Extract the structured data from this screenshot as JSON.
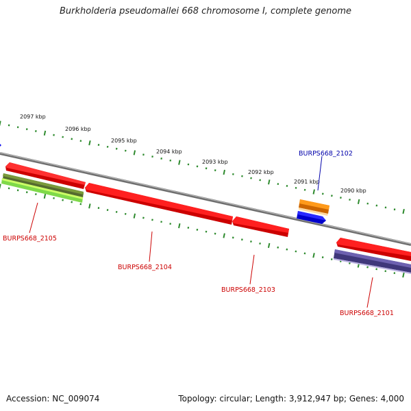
{
  "title": "Burkholderia pseudomallei 668 chromosome I, complete genome",
  "footer": {
    "accession": "Accession: NC_009074",
    "summary": "Topology: circular; Length: 3,912,947 bp; Genes: 4,000"
  },
  "ruler_labels": [
    "2097 kbp",
    "2096 kbp",
    "2095 kbp",
    "2094 kbp",
    "2093 kbp",
    "2092 kbp",
    "2091 kbp",
    "2090 kbp"
  ],
  "genes": [
    {
      "label": "BURPS668_2105",
      "color": "#cc0000"
    },
    {
      "label": "BURPS668_2104",
      "color": "#cc0000"
    },
    {
      "label": "BURPS668_2103",
      "color": "#cc0000"
    },
    {
      "label": "BURPS668_2102",
      "color": "#0000aa"
    },
    {
      "label": "BURPS668_2101",
      "color": "#cc0000"
    }
  ],
  "colors": {
    "backbone": "#8a8a8a",
    "ruler": "#2d8a2d",
    "cds_red": "#ee1111",
    "cds_orange": "#ff8c00",
    "cds_blue": "#1111ee",
    "cds_lime": "#99ff33",
    "cds_olive": "#6b8e23",
    "cds_slate": "#5a4f9a"
  }
}
